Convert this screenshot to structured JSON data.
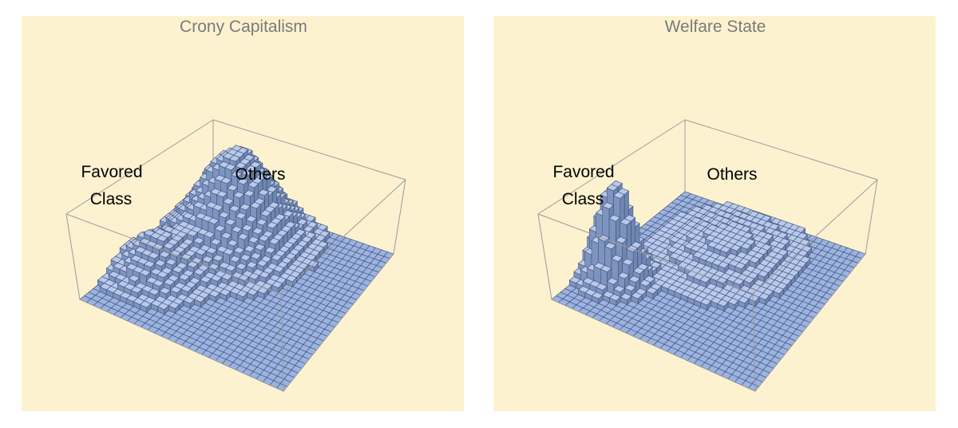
{
  "panels": [
    {
      "title": "Crony Capitalism",
      "labels": [
        "Favored",
        "Class",
        "Others"
      ]
    },
    {
      "title": "Welfare State",
      "labels": [
        "Favored",
        "Class",
        "Others"
      ]
    }
  ]
}
